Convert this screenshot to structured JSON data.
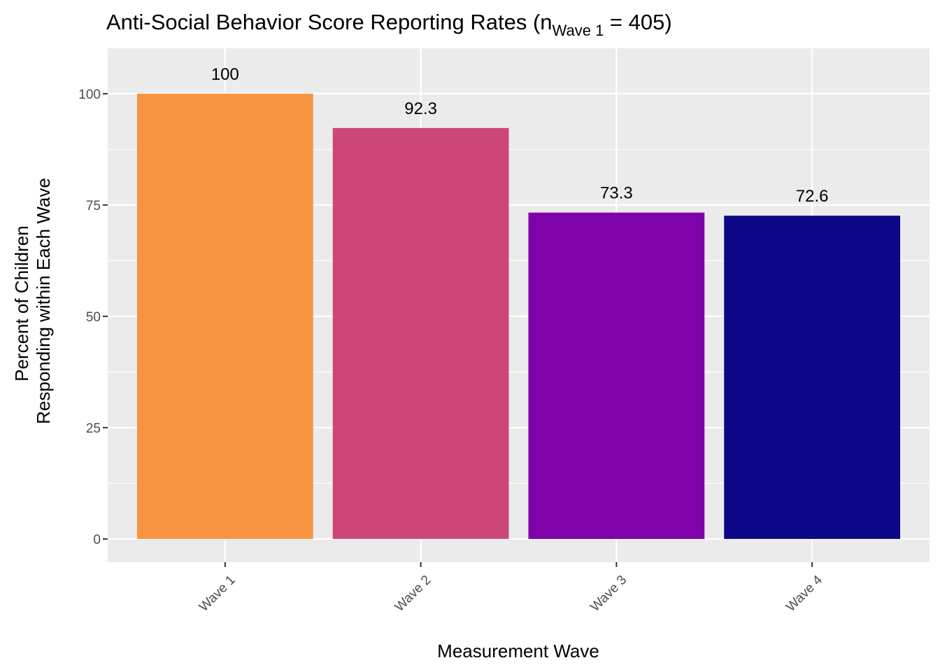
{
  "chart_data": {
    "type": "bar",
    "title": {
      "prefix": "Anti-Social Behavior Score Reporting Rates (n",
      "subscript": "Wave 1",
      "suffix": " = 405)"
    },
    "xlabel": "Measurement Wave",
    "ylabel": [
      "Percent of Children",
      "Responding within Each Wave"
    ],
    "categories": [
      "Wave 1",
      "Wave 2",
      "Wave 3",
      "Wave 4"
    ],
    "values": [
      100,
      92.3,
      73.3,
      72.6
    ],
    "data_labels": [
      "100",
      "92.3",
      "73.3",
      "72.6"
    ],
    "colors": [
      "#F89441",
      "#CC4778",
      "#7E03A8",
      "#0D0887"
    ],
    "y_ticks": [
      0,
      25,
      50,
      75,
      100
    ],
    "y_tick_labels": [
      "0",
      "25",
      "50",
      "75",
      "100"
    ],
    "ylim": [
      -5.2,
      110.2
    ],
    "grid": true,
    "legend": "none",
    "panel_background": "#EBEBEB",
    "gridline_color": "#FFFFFF"
  }
}
